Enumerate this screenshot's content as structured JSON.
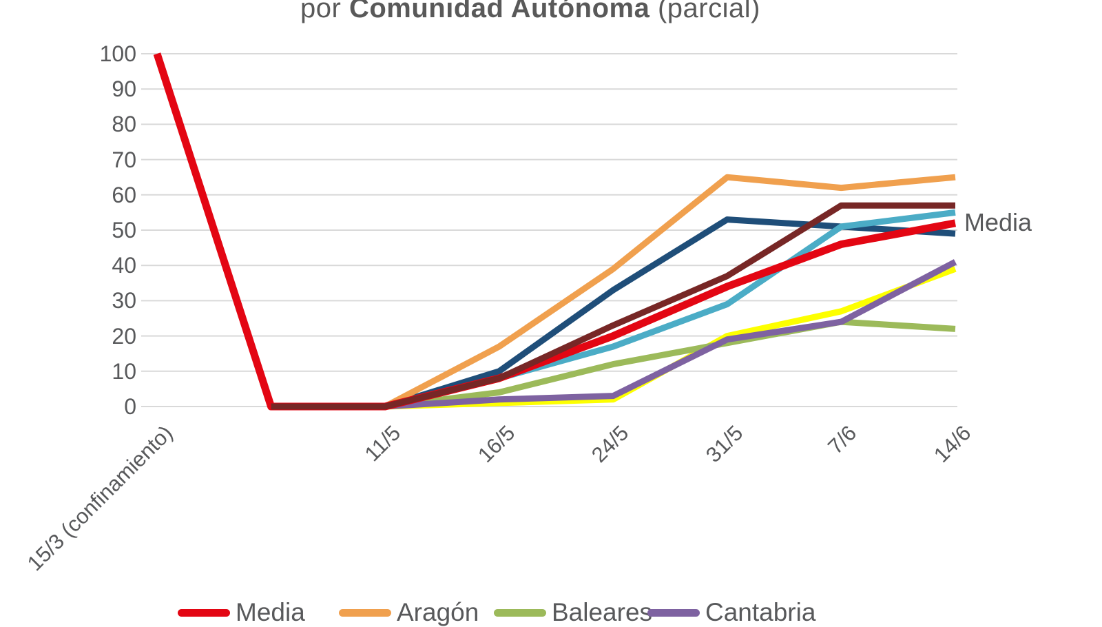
{
  "title": {
    "prefix": "por ",
    "highlight": "Comunidad Autónoma",
    "suffix": " (parcial)"
  },
  "annotation_label": "Media",
  "legend": {
    "items": [
      {
        "label": "Media",
        "color": "#e30613"
      },
      {
        "label": "Aragón",
        "color": "#f0a04e"
      },
      {
        "label": "Baleares",
        "color": "#9cba5a"
      },
      {
        "label": "Cantabria",
        "color": "#7e62a1"
      }
    ]
  },
  "colors": {
    "grid": "#d9d9d9",
    "axis_text": "#58595b",
    "title_text": "#595959"
  },
  "chart_data": {
    "type": "line",
    "title": "por Comunidad Autónoma (parcial)",
    "xlabel": "",
    "ylabel": "",
    "categories": [
      "15/3 (confinamiento)",
      "",
      "11/5",
      "16/5",
      "24/5",
      "31/5",
      "7/6",
      "14/6"
    ],
    "ylim": [
      0,
      100
    ],
    "yticks": [
      0,
      10,
      20,
      30,
      40,
      50,
      60,
      70,
      80,
      90,
      100
    ],
    "grid": true,
    "legend_position": "bottom",
    "legend_visible_labels": [
      "Media",
      "Aragón",
      "Baleares",
      "Cantabria"
    ],
    "annotation": {
      "text": "Media",
      "attached_series": "Media",
      "position": "right-of-last-point"
    },
    "series": [
      {
        "name": "",
        "color": "#fdff00",
        "width": 9,
        "values": [
          null,
          null,
          0,
          1,
          2,
          20,
          27,
          39
        ]
      },
      {
        "name": "Baleares",
        "color": "#9cba5a",
        "width": 9,
        "values": [
          null,
          null,
          0,
          4,
          12,
          18,
          24,
          22
        ]
      },
      {
        "name": "Cantabria",
        "color": "#7e62a1",
        "width": 9,
        "values": [
          null,
          null,
          0,
          2,
          3,
          19,
          24,
          41
        ]
      },
      {
        "name": "",
        "color": "#1f4e79",
        "width": 9,
        "values": [
          null,
          null,
          0,
          10,
          33,
          53,
          51,
          49
        ]
      },
      {
        "name": "",
        "color": "#4bacc6",
        "width": 9,
        "values": [
          null,
          null,
          0,
          8,
          17,
          29,
          51,
          55
        ]
      },
      {
        "name": "Aragón",
        "color": "#f0a04e",
        "width": 9,
        "values": [
          null,
          0,
          0,
          17,
          39,
          65,
          62,
          65
        ]
      },
      {
        "name": "Media",
        "color": "#e30613",
        "width": 11,
        "values": [
          100,
          0,
          0,
          8,
          20,
          34,
          46,
          52
        ]
      },
      {
        "name": "",
        "color": "#772726",
        "width": 9,
        "values": [
          null,
          0,
          0,
          8,
          23,
          37,
          57,
          57
        ]
      }
    ]
  }
}
